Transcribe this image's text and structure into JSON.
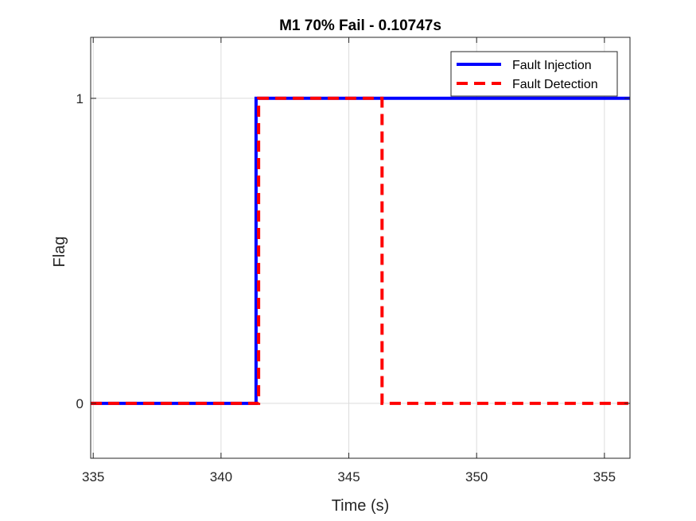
{
  "chart_data": {
    "type": "line",
    "title": "M1 70% Fail - 0.10747s",
    "xlabel": "Time (s)",
    "ylabel": "Flag",
    "xlim": [
      334.9,
      356
    ],
    "ylim": [
      -0.18,
      1.2
    ],
    "xticks": [
      335,
      340,
      345,
      350,
      355
    ],
    "xtick_labels": [
      "335",
      "340",
      "345",
      "350",
      "355"
    ],
    "yticks": [
      0,
      1
    ],
    "ytick_labels": [
      "0",
      "1"
    ],
    "grid": true,
    "legend_position": "top-right",
    "series": [
      {
        "name": "Fault Injection",
        "color": "#0000ff",
        "style": "solid",
        "x": [
          334.9,
          341.37,
          341.37,
          356
        ],
        "y": [
          0,
          0,
          1,
          1
        ]
      },
      {
        "name": "Fault Detection",
        "color": "#ff0000",
        "style": "dashed",
        "x": [
          334.9,
          341.47,
          341.47,
          346.3,
          346.3,
          356
        ],
        "y": [
          0,
          0,
          1,
          1,
          0,
          0
        ]
      }
    ]
  }
}
